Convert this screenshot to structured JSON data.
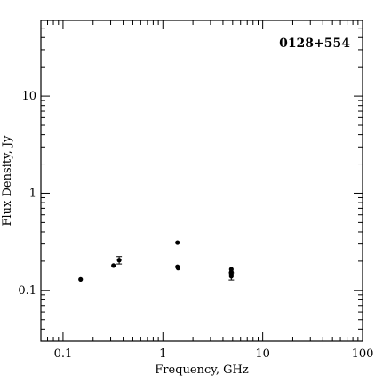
{
  "chart_data": {
    "type": "scatter",
    "title": "0128+554",
    "xlabel": "Frequency, GHz",
    "ylabel": "Flux Density, Jy",
    "xscale": "log",
    "yscale": "log",
    "xlim": [
      0.06,
      100
    ],
    "ylim": [
      0.03,
      60
    ],
    "xtick_values": [
      0.1,
      1,
      10,
      100
    ],
    "xtick_labels": [
      "0.1",
      "1",
      "10",
      "100"
    ],
    "ytick_values": [
      0.1,
      1,
      10
    ],
    "ytick_labels": [
      "0.1",
      "1",
      "10"
    ],
    "grid": false,
    "points": [
      {
        "x": 0.15,
        "y": 0.13
      },
      {
        "x": 0.32,
        "y": 0.18
      },
      {
        "x": 0.365,
        "y": 0.205,
        "err": 0.018
      },
      {
        "x": 1.4,
        "y": 0.31
      },
      {
        "x": 1.4,
        "y": 0.175
      },
      {
        "x": 1.42,
        "y": 0.17
      },
      {
        "x": 4.85,
        "y": 0.165
      },
      {
        "x": 4.85,
        "y": 0.155
      },
      {
        "x": 4.85,
        "y": 0.148
      },
      {
        "x": 4.85,
        "y": 0.14,
        "err": 0.012
      }
    ]
  }
}
